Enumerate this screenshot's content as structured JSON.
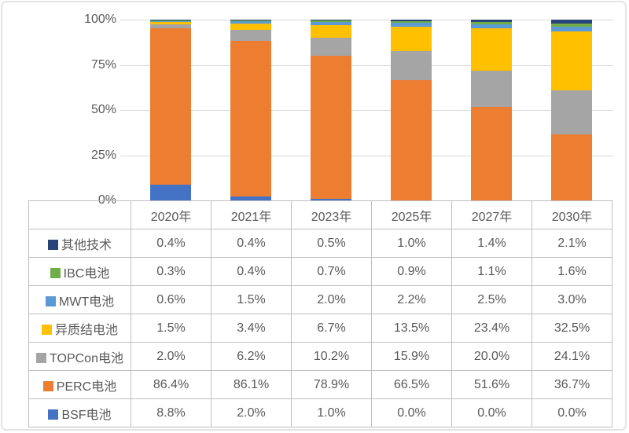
{
  "chart_data": {
    "type": "bar",
    "stacked": true,
    "title": "",
    "xlabel": "",
    "ylabel": "",
    "ylim": [
      0,
      100
    ],
    "grid": true,
    "legend_position": "table-below",
    "y_ticks": [
      "100%",
      "75%",
      "50%",
      "25%",
      "0%"
    ],
    "categories": [
      "2020年",
      "2021年",
      "2023年",
      "2025年",
      "2027年",
      "2030年"
    ],
    "series": [
      {
        "name": "其他技术",
        "color": "#264478",
        "values": [
          0.4,
          0.4,
          0.5,
          1.0,
          1.4,
          2.1
        ]
      },
      {
        "name": "IBC电池",
        "color": "#70AD47",
        "values": [
          0.3,
          0.4,
          0.7,
          0.9,
          1.1,
          1.6
        ]
      },
      {
        "name": "MWT电池",
        "color": "#5B9BD5",
        "values": [
          0.6,
          1.5,
          2.0,
          2.2,
          2.5,
          3.0
        ]
      },
      {
        "name": "异质结电池",
        "color": "#FFC000",
        "values": [
          1.5,
          3.4,
          6.7,
          13.5,
          23.4,
          32.5
        ]
      },
      {
        "name": "TOPCon电池",
        "color": "#A5A5A5",
        "values": [
          2.0,
          6.2,
          10.2,
          15.9,
          20.0,
          24.1
        ]
      },
      {
        "name": "PERC电池",
        "color": "#ED7D31",
        "values": [
          86.4,
          86.1,
          78.9,
          66.5,
          51.6,
          36.7
        ]
      },
      {
        "name": "BSF电池",
        "color": "#4472C4",
        "values": [
          8.8,
          2.0,
          1.0,
          0.0,
          0.0,
          0.0
        ]
      }
    ]
  },
  "table": {
    "columns": [
      "2020年",
      "2021年",
      "2023年",
      "2025年",
      "2027年",
      "2030年"
    ],
    "rows": [
      {
        "label": "其他技术",
        "swatch": "#264478",
        "cells": [
          "0.4%",
          "0.4%",
          "0.5%",
          "1.0%",
          "1.4%",
          "2.1%"
        ]
      },
      {
        "label": "IBC电池",
        "swatch": "#70AD47",
        "cells": [
          "0.3%",
          "0.4%",
          "0.7%",
          "0.9%",
          "1.1%",
          "1.6%"
        ]
      },
      {
        "label": "MWT电池",
        "swatch": "#5B9BD5",
        "cells": [
          "0.6%",
          "1.5%",
          "2.0%",
          "2.2%",
          "2.5%",
          "3.0%"
        ]
      },
      {
        "label": "异质结电池",
        "swatch": "#FFC000",
        "cells": [
          "1.5%",
          "3.4%",
          "6.7%",
          "13.5%",
          "23.4%",
          "32.5%"
        ]
      },
      {
        "label": "TOPCon电池",
        "swatch": "#A5A5A5",
        "cells": [
          "2.0%",
          "6.2%",
          "10.2%",
          "15.9%",
          "20.0%",
          "24.1%"
        ]
      },
      {
        "label": "PERC电池",
        "swatch": "#ED7D31",
        "cells": [
          "86.4%",
          "86.1%",
          "78.9%",
          "66.5%",
          "51.6%",
          "36.7%"
        ]
      },
      {
        "label": "BSF电池",
        "swatch": "#4472C4",
        "cells": [
          "8.8%",
          "2.0%",
          "1.0%",
          "0.0%",
          "0.0%",
          "0.0%"
        ]
      }
    ]
  }
}
